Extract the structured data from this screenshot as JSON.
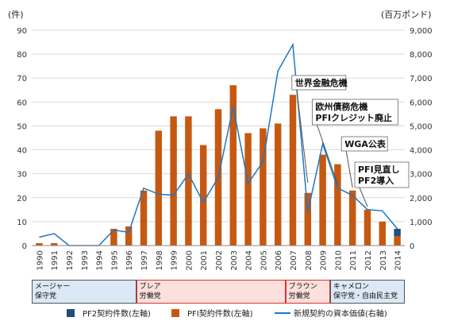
{
  "chart_data": {
    "type": "bar",
    "left_unit": "(件)",
    "right_unit": "(百万ポンド)",
    "categories": [
      "1990",
      "1991",
      "1992",
      "1993",
      "1994",
      "1995",
      "1996",
      "1997",
      "1998",
      "1999",
      "2000",
      "2001",
      "2002",
      "2003",
      "2004",
      "2005",
      "2006",
      "2007",
      "2008",
      "2009",
      "2010",
      "2011",
      "2012",
      "2013",
      "2014"
    ],
    "series": [
      {
        "name": "PF2契約件数(左軸)",
        "axis": "left",
        "color": "#1f4e79",
        "values": [
          0,
          0,
          0,
          0,
          0,
          0,
          0,
          0,
          0,
          0,
          0,
          0,
          0,
          0,
          0,
          0,
          0,
          0,
          0,
          0,
          0,
          0,
          0,
          0,
          3
        ]
      },
      {
        "name": "PFI契約件数(左軸)",
        "axis": "left",
        "color": "#c65911",
        "values": [
          1,
          1,
          0,
          0,
          0,
          7,
          8,
          23,
          48,
          54,
          54,
          42,
          57,
          67,
          47,
          49,
          51,
          63,
          22,
          38,
          34,
          23,
          15,
          10,
          4
        ]
      },
      {
        "name": "新規契約の資本価値(右軸)",
        "axis": "right",
        "color": "#1f77c4",
        "values": [
          350,
          500,
          0,
          0,
          0,
          650,
          550,
          2400,
          2150,
          2100,
          3000,
          1800,
          2850,
          5800,
          2600,
          3500,
          7300,
          8400,
          1400,
          4250,
          2400,
          2100,
          1500,
          1450,
          700
        ]
      }
    ],
    "ylim_left": [
      0,
      90
    ],
    "ylim_right": [
      0,
      9000
    ],
    "yticks_left": [
      "0",
      "10",
      "20",
      "30",
      "40",
      "50",
      "60",
      "70",
      "80",
      "90"
    ],
    "yticks_right": [
      "0",
      "1,000",
      "2,000",
      "3,000",
      "4,000",
      "5,000",
      "6,000",
      "7,000",
      "8,000",
      "9,000"
    ],
    "grid": true,
    "legend_position": "bottom",
    "annotations": [
      {
        "text": "世界金融危機",
        "year": "2008"
      },
      {
        "text": "欧州債務危機",
        "year": "2010"
      },
      {
        "text": "PFIクレジット廃止",
        "year": "2010"
      },
      {
        "text": "WGA公表",
        "year": "2011"
      },
      {
        "text": "PFI見直し",
        "year": "2012"
      },
      {
        "text": "PF2導入",
        "year": "2012"
      }
    ]
  },
  "eras": [
    {
      "leader": "メージャー",
      "party": "保守党",
      "from": "1990",
      "to": "1996",
      "color": "#dbe8f5",
      "border": "#555555"
    },
    {
      "leader": "ブレア",
      "party": "労働党",
      "from": "1997",
      "to": "2006",
      "color": "#fbe0dc",
      "border": "#e03030"
    },
    {
      "leader": "ブラウン",
      "party": "労働党",
      "from": "2007",
      "to": "2009",
      "color": "#fbe0dc",
      "border": "#e03030"
    },
    {
      "leader": "キャメロン",
      "party": "保守党・自由民主党",
      "from": "2010",
      "to": "2014",
      "color": "#dbe8f5",
      "border": "#555555"
    }
  ]
}
